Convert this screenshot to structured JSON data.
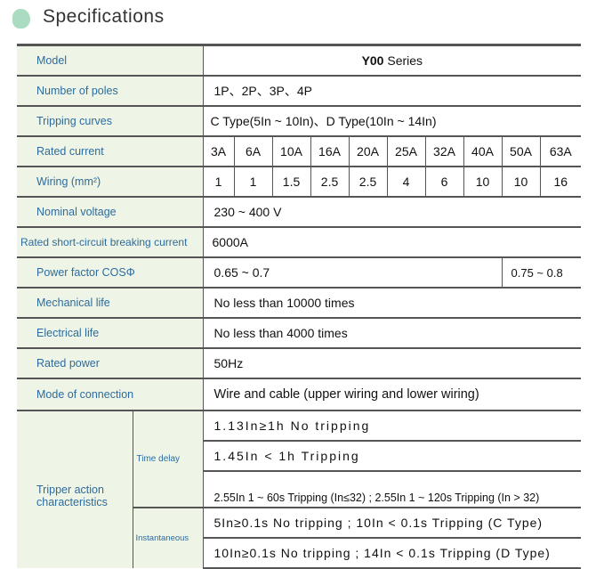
{
  "title": "Specifications",
  "rows": {
    "model": {
      "label": "Model",
      "bold": "Y00",
      "value": "Series"
    },
    "poles": {
      "label": "Number of poles",
      "value": "1P、2P、3P、4P"
    },
    "curves": {
      "label": "Tripping curves",
      "value": "C Type(5In ~ 10In)、D Type(10In ~ 14In)"
    },
    "current": {
      "label": "Rated current",
      "values": [
        "3A",
        "6A",
        "10A",
        "16A",
        "20A",
        "25A",
        "32A",
        "40A",
        "50A",
        "63A"
      ]
    },
    "wiring": {
      "label": "Wiring (mm²)",
      "values": [
        "1",
        "1",
        "1.5",
        "2.5",
        "2.5",
        "4",
        "6",
        "10",
        "10",
        "16"
      ]
    },
    "voltage": {
      "label": "Nominal voltage",
      "value": "230 ~ 400 V"
    },
    "breaking": {
      "label": "Rated short-circuit breaking current",
      "value": "6000A"
    },
    "pf": {
      "label": "Power factor COSΦ",
      "value1": "0.65 ~ 0.7",
      "value2": "0.75 ~ 0.8"
    },
    "mech": {
      "label": "Mechanical life",
      "value": "No less than 10000 times"
    },
    "elec": {
      "label": "Electrical life",
      "value": "No less than 4000 times"
    },
    "power": {
      "label": "Rated power",
      "value": "50Hz"
    },
    "mode": {
      "label": "Mode of connection",
      "value": "Wire and cable (upper wiring and lower wiring)"
    },
    "tripper": {
      "label": "Tripper action characteristics",
      "time_delay": "Time delay",
      "instantaneous": "Instantaneous",
      "td": [
        "1.13In≥1h  No tripping",
        "1.45In < 1h  Tripping",
        "2.55In 1 ~ 60s Tripping (In≤32) ; 2.55In 1 ~ 120s Tripping (In > 32)"
      ],
      "inst": [
        "5In≥0.1s No tripping ;  10In < 0.1s Tripping (C Type)",
        "10In≥0.1s No tripping ;  14In < 0.1s Tripping (D Type)"
      ]
    }
  }
}
